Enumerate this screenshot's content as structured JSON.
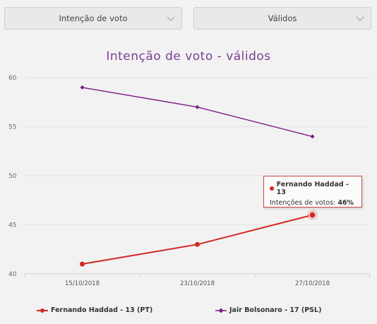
{
  "filters": {
    "metric": "Intenção de voto",
    "base": "Válidos"
  },
  "chart_data": {
    "type": "line",
    "title": "Intenção de voto - válidos",
    "categories": [
      "15/10/2018",
      "23/10/2018",
      "27/10/2018"
    ],
    "ylim": [
      40,
      60
    ],
    "yticks": [
      40,
      45,
      50,
      55,
      60
    ],
    "grid": true,
    "legend": "bottom",
    "series": [
      {
        "name": "Fernando Haddad - 13 (PT)",
        "color": "#d22a25",
        "values": [
          41,
          43,
          46
        ]
      },
      {
        "name": "Jair Bolsonaro - 17 (PSL)",
        "color": "#7f1a84",
        "values": [
          59,
          57,
          54
        ]
      }
    ],
    "tooltip": {
      "title": "Fernando Haddad - 13",
      "label": "Intenções de votos:",
      "value": "46%"
    }
  }
}
